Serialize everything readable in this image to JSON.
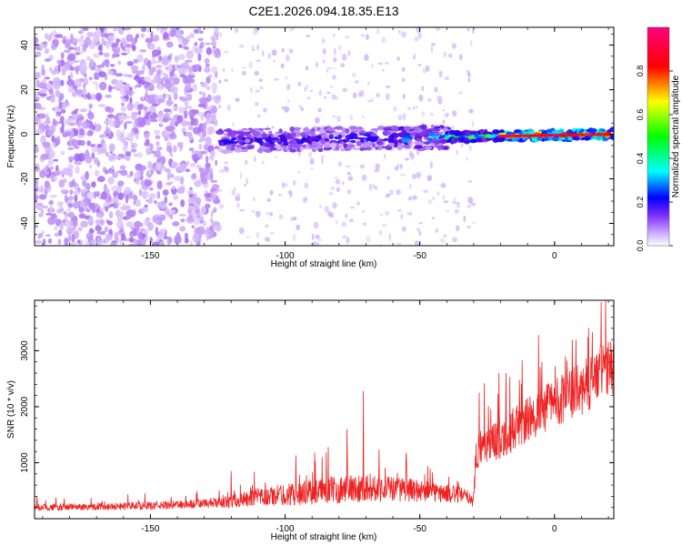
{
  "chart_data": [
    {
      "type": "heatmap",
      "title": "C2E1.2026.094.18.35.E13",
      "xlabel": "Height of straight line (km)",
      "ylabel": "Frequency (Hz)",
      "xlim": [
        -193,
        22
      ],
      "ylim": [
        -50,
        48
      ],
      "x_ticks": [
        -150,
        -100,
        -50,
        0
      ],
      "y_ticks": [
        -40,
        -20,
        0,
        20,
        40
      ],
      "colorbar": {
        "label": "Normalized spectral amplitude",
        "range": [
          0,
          1
        ],
        "ticks": [
          0.0,
          0.2,
          0.4,
          0.6,
          0.8
        ],
        "colormap": [
          "#ffffff",
          "#b07cf5",
          "#5a00e0",
          "#0000ff",
          "#00ffff",
          "#00ff00",
          "#ffff00",
          "#ff0000",
          "#ff0080"
        ]
      },
      "features": {
        "noise_region_km": [
          -193,
          -125
        ],
        "sparse_region_km": [
          -125,
          -30
        ],
        "main_band": {
          "start_km": -125,
          "end_km": 22,
          "freq_start_hz": -3,
          "freq_end_hz": 0,
          "peak_amplitude": 0.95
        }
      }
    },
    {
      "type": "line",
      "xlabel": "Height of straight line (km)",
      "ylabel": "SNR (10 * v/v)",
      "xlim": [
        -193,
        22
      ],
      "ylim": [
        0,
        3900
      ],
      "x_ticks": [
        -150,
        -100,
        -50,
        0
      ],
      "y_ticks": [
        1000,
        2000,
        3000
      ],
      "series": [
        {
          "name": "SNR",
          "color": "#ee2222",
          "envelope_x": [
            -193,
            -150,
            -125,
            -110,
            -90,
            -70,
            -50,
            -35,
            -30,
            -29,
            -20,
            -10,
            0,
            10,
            18,
            22
          ],
          "envelope_y": [
            200,
            230,
            280,
            380,
            480,
            560,
            500,
            420,
            350,
            1200,
            1450,
            1750,
            2100,
            2300,
            2650,
            2700
          ],
          "noise_amplitude": [
            60,
            70,
            90,
            170,
            230,
            260,
            200,
            150,
            140,
            320,
            380,
            420,
            450,
            480,
            520,
            520
          ],
          "spikes": [
            {
              "x": -120,
              "y": 850
            },
            {
              "x": -96,
              "y": 1130
            },
            {
              "x": -89,
              "y": 1180
            },
            {
              "x": -84,
              "y": 1280
            },
            {
              "x": -77,
              "y": 1600
            },
            {
              "x": -71,
              "y": 2280
            },
            {
              "x": -55,
              "y": 1180
            },
            {
              "x": -28,
              "y": 2250
            },
            {
              "x": -26,
              "y": 2420
            },
            {
              "x": -18,
              "y": 2600
            },
            {
              "x": -12,
              "y": 2830
            },
            {
              "x": -6,
              "y": 3280
            },
            {
              "x": 4,
              "y": 2900
            },
            {
              "x": 8,
              "y": 3200
            },
            {
              "x": 14,
              "y": 3330
            },
            {
              "x": 19,
              "y": 3900
            }
          ]
        }
      ]
    }
  ]
}
